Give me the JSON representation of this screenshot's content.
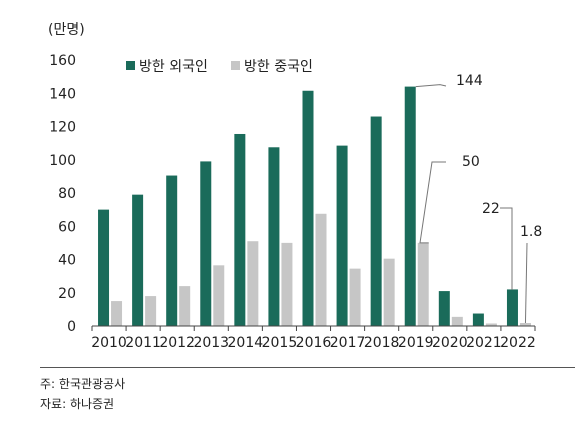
{
  "chart_data": {
    "type": "bar",
    "ylabel": "(만명)",
    "ylim": [
      0,
      160
    ],
    "yticks": [
      0,
      20,
      40,
      60,
      80,
      100,
      120,
      140,
      160
    ],
    "grid": false,
    "legend_position": "top-left",
    "categories": [
      "2010",
      "2011",
      "2012",
      "2013",
      "2014",
      "2015",
      "2016",
      "2017",
      "2018",
      "2019",
      "2020",
      "2021",
      "2022"
    ],
    "series": [
      {
        "name": "방한 외국인",
        "color": "#1a6b5a",
        "values": [
          70,
          79,
          90.5,
          99,
          115.5,
          107.5,
          141.5,
          108.5,
          126,
          144,
          21,
          7.5,
          22
        ]
      },
      {
        "name": "방한 중국인",
        "color": "#c6c6c6",
        "values": [
          15,
          18,
          24,
          36.5,
          51,
          50,
          67.5,
          34.5,
          40.5,
          50,
          5.5,
          1.5,
          1.8
        ]
      }
    ],
    "annotations": [
      {
        "text": "144",
        "series": 0,
        "category": "2019"
      },
      {
        "text": "50",
        "series": 1,
        "category": "2019"
      },
      {
        "text": "22",
        "series": 0,
        "category": "2022"
      },
      {
        "text": "1.8",
        "series": 1,
        "category": "2022"
      }
    ]
  },
  "footnotes": {
    "note": "주: 한국관광공사",
    "source": "자료: 하나증권"
  }
}
